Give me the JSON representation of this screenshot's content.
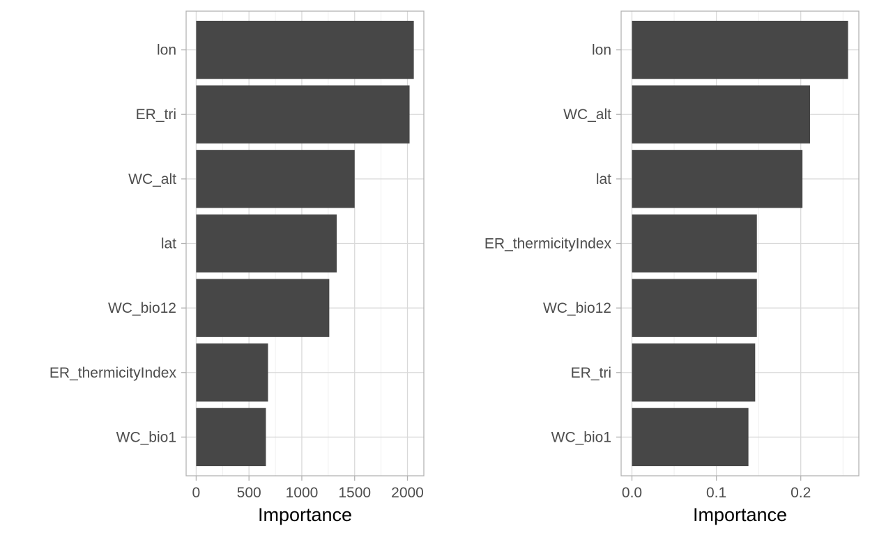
{
  "chart_data": [
    {
      "type": "bar",
      "orientation": "horizontal",
      "categories": [
        "lon",
        "ER_tri",
        "WC_alt",
        "lat",
        "WC_bio12",
        "ER_thermicityIndex",
        "WC_bio1"
      ],
      "values": [
        2060,
        2020,
        1500,
        1330,
        1260,
        680,
        660
      ],
      "xlabel": "Importance",
      "ylabel": "",
      "xlim": [
        -95,
        2155
      ],
      "xticks": [
        0,
        500,
        1000,
        1500,
        2000
      ],
      "xtick_labels": [
        "0",
        "500",
        "1000",
        "1500",
        "2000"
      ],
      "grid": true,
      "bar_color": "#474747"
    },
    {
      "type": "bar",
      "orientation": "horizontal",
      "categories": [
        "lon",
        "WC_alt",
        "lat",
        "ER_thermicityIndex",
        "WC_bio12",
        "ER_tri",
        "WC_bio1"
      ],
      "values": [
        0.256,
        0.211,
        0.202,
        0.148,
        0.148,
        0.146,
        0.138
      ],
      "xlabel": "Importance",
      "ylabel": "",
      "xlim": [
        -0.0128,
        0.2688
      ],
      "xticks": [
        0.0,
        0.1,
        0.2
      ],
      "xtick_labels": [
        "0.0",
        "0.1",
        "0.2"
      ],
      "grid": true,
      "bar_color": "#474747"
    }
  ]
}
